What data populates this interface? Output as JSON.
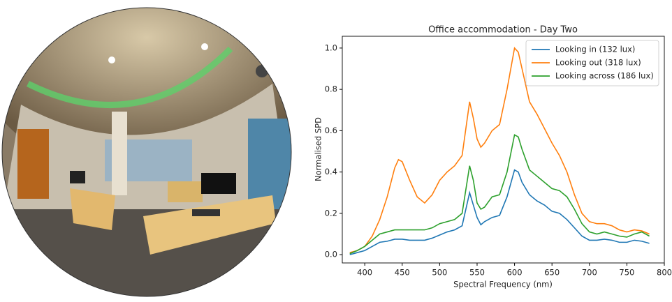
{
  "chart_data": {
    "type": "line",
    "title": "Office accommodation - Day Two",
    "xlabel": "Spectral Frequency (nm)",
    "ylabel": "Normalised SPD",
    "x": [
      380,
      390,
      400,
      410,
      420,
      430,
      440,
      445,
      450,
      460,
      470,
      480,
      490,
      500,
      510,
      520,
      530,
      540,
      545,
      550,
      555,
      560,
      570,
      580,
      590,
      600,
      605,
      610,
      620,
      630,
      640,
      650,
      660,
      670,
      680,
      690,
      700,
      710,
      720,
      730,
      740,
      750,
      760,
      770,
      780
    ],
    "series": [
      {
        "name": "Looking in (132 lux)",
        "color": "#1f77b4",
        "values": [
          0,
          0.01,
          0.02,
          0.04,
          0.06,
          0.065,
          0.075,
          0.075,
          0.075,
          0.07,
          0.07,
          0.07,
          0.08,
          0.095,
          0.11,
          0.12,
          0.14,
          0.3,
          0.24,
          0.18,
          0.145,
          0.16,
          0.18,
          0.19,
          0.28,
          0.41,
          0.4,
          0.35,
          0.29,
          0.26,
          0.24,
          0.21,
          0.2,
          0.17,
          0.13,
          0.09,
          0.07,
          0.07,
          0.075,
          0.07,
          0.06,
          0.06,
          0.07,
          0.065,
          0.055
        ]
      },
      {
        "name": "Looking out (318 lux)",
        "color": "#ff7f0e",
        "values": [
          0.01,
          0.02,
          0.04,
          0.09,
          0.17,
          0.28,
          0.42,
          0.46,
          0.45,
          0.36,
          0.28,
          0.25,
          0.29,
          0.36,
          0.4,
          0.43,
          0.48,
          0.74,
          0.66,
          0.56,
          0.52,
          0.54,
          0.6,
          0.63,
          0.8,
          1.0,
          0.98,
          0.9,
          0.74,
          0.68,
          0.61,
          0.54,
          0.48,
          0.4,
          0.29,
          0.2,
          0.16,
          0.15,
          0.15,
          0.14,
          0.12,
          0.11,
          0.12,
          0.115,
          0.1
        ]
      },
      {
        "name": "Looking across (186 lux)",
        "color": "#2ca02c",
        "values": [
          0.005,
          0.02,
          0.04,
          0.07,
          0.1,
          0.11,
          0.12,
          0.12,
          0.12,
          0.12,
          0.12,
          0.12,
          0.13,
          0.15,
          0.16,
          0.17,
          0.2,
          0.43,
          0.36,
          0.25,
          0.22,
          0.23,
          0.28,
          0.29,
          0.4,
          0.58,
          0.57,
          0.51,
          0.41,
          0.38,
          0.35,
          0.32,
          0.31,
          0.28,
          0.22,
          0.15,
          0.11,
          0.1,
          0.11,
          0.1,
          0.09,
          0.085,
          0.1,
          0.11,
          0.09
        ]
      }
    ],
    "xlim": [
      370,
      800
    ],
    "ylim": [
      -0.04,
      1.057
    ],
    "xticks": [
      400,
      450,
      500,
      550,
      600,
      650,
      700,
      750,
      800
    ],
    "yticks": [
      {
        "value": 0,
        "label": "0.0"
      },
      0.2,
      0.4,
      0.6,
      0.8,
      {
        "value": 1,
        "label": "1.0"
      }
    ],
    "grid": false,
    "legend": "upper right"
  }
}
